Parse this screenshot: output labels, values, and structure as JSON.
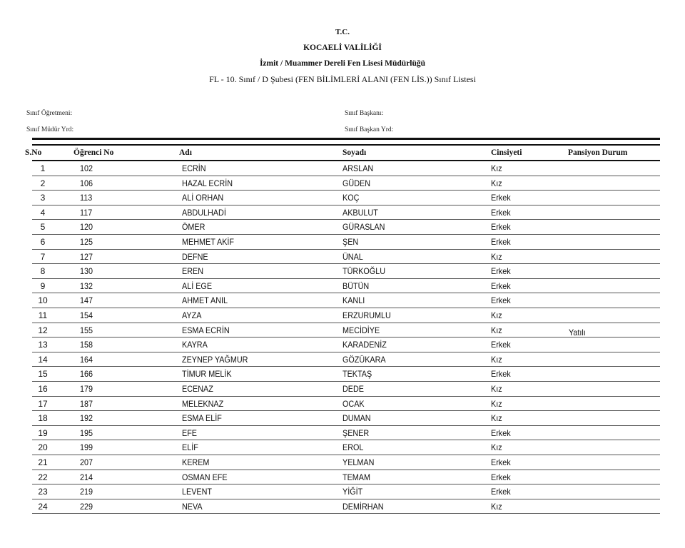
{
  "header": {
    "line1": "T.C.",
    "line2": "KOCAELİ VALİLİĞİ",
    "line3": "İzmit / Muammer Dereli Fen Lisesi Müdürlüğü",
    "line4": "FL - 10. Sınıf / D Şubesi (FEN BİLİMLERİ ALANI (FEN LİS.)) Sınıf Listesi"
  },
  "meta": {
    "teacher_label": "Sınıf Öğretmeni:",
    "vice_principal_label": "Sınıf Müdür Yrd:",
    "class_president_label": "Sınıf Başkanı:",
    "vice_president_label": "Sınıf Başkan Yrd:"
  },
  "table": {
    "columns": [
      "S.No",
      "Öğrenci No",
      "Adı",
      "Soyadı",
      "Cinsiyeti",
      "Pansiyon Durum"
    ],
    "rows": [
      [
        "1",
        "102",
        "ECRİN",
        "ARSLAN",
        "Kız",
        ""
      ],
      [
        "2",
        "106",
        "HAZAL ECRİN",
        "GÜDEN",
        "Kız",
        ""
      ],
      [
        "3",
        "113",
        "ALİ ORHAN",
        "KOÇ",
        "Erkek",
        ""
      ],
      [
        "4",
        "117",
        "ABDULHADİ",
        "AKBULUT",
        "Erkek",
        ""
      ],
      [
        "5",
        "120",
        "ÖMER",
        "GÜRASLAN",
        "Erkek",
        ""
      ],
      [
        "6",
        "125",
        "MEHMET AKİF",
        "ŞEN",
        "Erkek",
        ""
      ],
      [
        "7",
        "127",
        "DEFNE",
        "ÜNAL",
        "Kız",
        ""
      ],
      [
        "8",
        "130",
        "EREN",
        "TÜRKOĞLU",
        "Erkek",
        ""
      ],
      [
        "9",
        "132",
        "ALİ EGE",
        "BÜTÜN",
        "Erkek",
        ""
      ],
      [
        "10",
        "147",
        "AHMET ANIL",
        "KANLI",
        "Erkek",
        ""
      ],
      [
        "11",
        "154",
        "AYZA",
        "ERZURUMLU",
        "Kız",
        ""
      ],
      [
        "12",
        "155",
        "ESMA ECRİN",
        "MECİDİYE",
        "Kız",
        "Yatılı"
      ],
      [
        "13",
        "158",
        "KAYRA",
        "KARADENİZ",
        "Erkek",
        ""
      ],
      [
        "14",
        "164",
        "ZEYNEP YAĞMUR",
        "GÖZÜKARA",
        "Kız",
        ""
      ],
      [
        "15",
        "166",
        "TİMUR MELİK",
        "TEKTAŞ",
        "Erkek",
        ""
      ],
      [
        "16",
        "179",
        "ECENAZ",
        "DEDE",
        "Kız",
        ""
      ],
      [
        "17",
        "187",
        "MELEKNAZ",
        "OCAK",
        "Kız",
        ""
      ],
      [
        "18",
        "192",
        "ESMA ELİF",
        "DUMAN",
        "Kız",
        ""
      ],
      [
        "19",
        "195",
        "EFE",
        "ŞENER",
        "Erkek",
        ""
      ],
      [
        "20",
        "199",
        "ELİF",
        "EROL",
        "Kız",
        ""
      ],
      [
        "21",
        "207",
        "KEREM",
        "YELMAN",
        "Erkek",
        ""
      ],
      [
        "22",
        "214",
        "OSMAN EFE",
        "TEMAM",
        "Erkek",
        ""
      ],
      [
        "23",
        "219",
        "LEVENT",
        "YİĞİT",
        "Erkek",
        ""
      ],
      [
        "24",
        "229",
        "NEVA",
        "DEMİRHAN",
        "Kız",
        ""
      ]
    ]
  }
}
